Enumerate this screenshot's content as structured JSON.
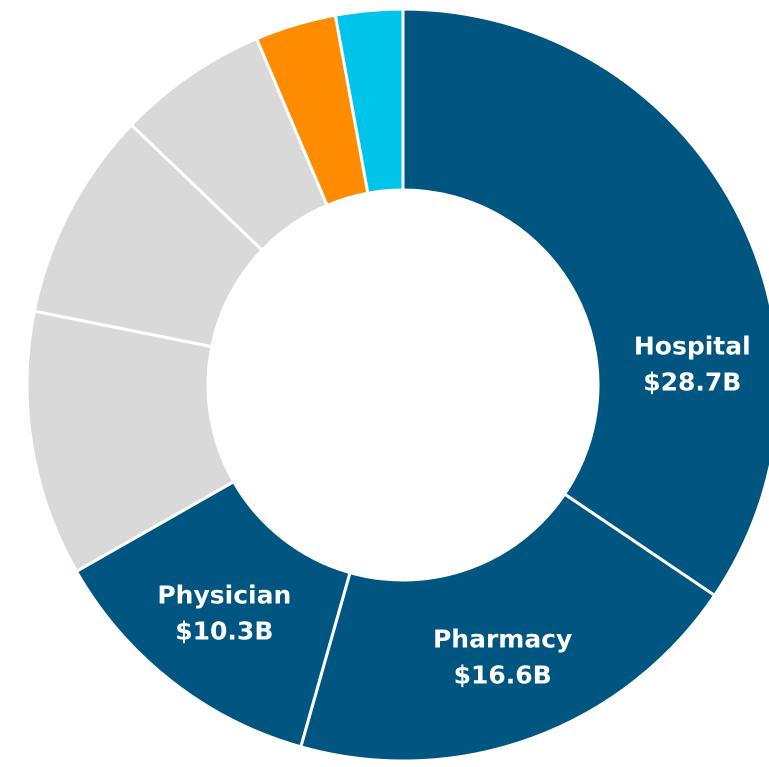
{
  "chart_data": {
    "type": "donut",
    "categories": [
      "Hospital",
      "Pharmacy",
      "Physician",
      null,
      null,
      null,
      null,
      null
    ],
    "values": [
      28.7,
      16.6,
      10.3,
      9.5,
      7.5,
      5.4,
      2.9,
      2.4
    ],
    "value_labels": [
      "$28.7B",
      "$16.6B",
      "$10.3B",
      null,
      null,
      null,
      null,
      null
    ],
    "colors": [
      "#005581",
      "#005581",
      "#005581",
      "#d9d9d9",
      "#d9d9d9",
      "#d9d9d9",
      "#ff8c00",
      "#00c4ea"
    ]
  }
}
